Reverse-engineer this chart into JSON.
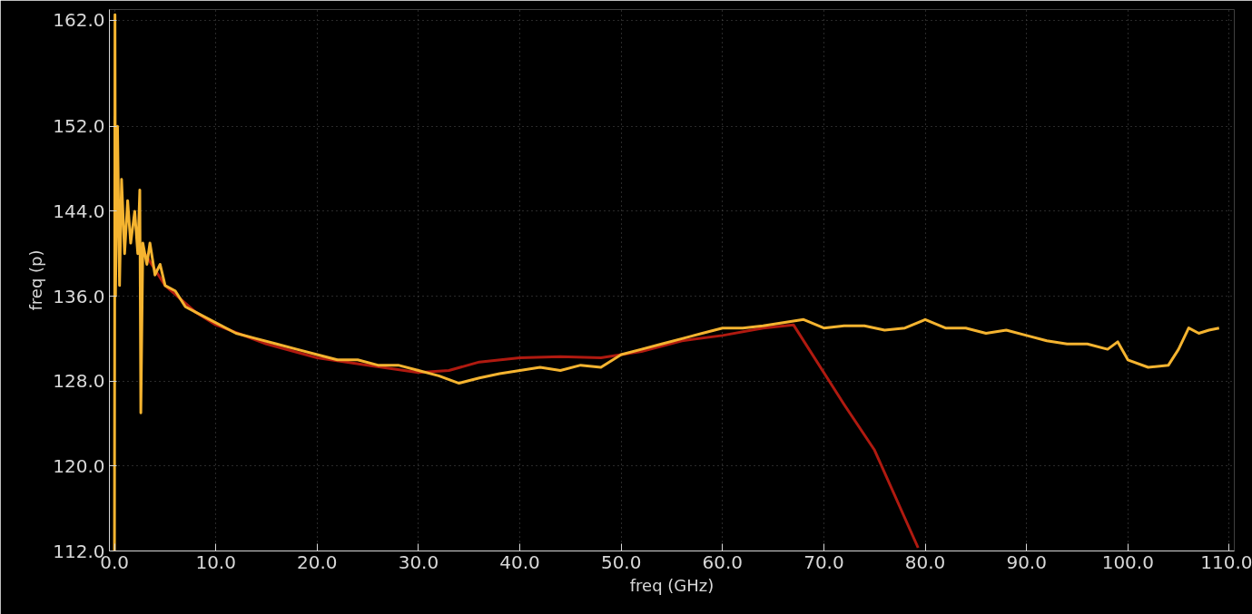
{
  "chart_data": {
    "type": "line",
    "xlabel": "freq (GHz)",
    "ylabel": "freq (p)",
    "xlim": [
      -0.5,
      110.5
    ],
    "ylim": [
      112,
      163
    ],
    "xticks": [
      {
        "value": 0,
        "label": "0.0"
      },
      {
        "value": 10,
        "label": "10.0"
      },
      {
        "value": 20,
        "label": "20.0"
      },
      {
        "value": 30,
        "label": "30.0"
      },
      {
        "value": 40,
        "label": "40.0"
      },
      {
        "value": 50,
        "label": "50.0"
      },
      {
        "value": 60,
        "label": "60.0"
      },
      {
        "value": 70,
        "label": "70.0"
      },
      {
        "value": 80,
        "label": "80.0"
      },
      {
        "value": 90,
        "label": "90.0"
      },
      {
        "value": 100,
        "label": "100.0"
      },
      {
        "value": 110,
        "label": "110.0"
      }
    ],
    "yticks": [
      {
        "value": 112,
        "label": "112.0"
      },
      {
        "value": 120,
        "label": "120.0"
      },
      {
        "value": 128,
        "label": "128.0"
      },
      {
        "value": 136,
        "label": "136.0"
      },
      {
        "value": 144,
        "label": "144.0"
      },
      {
        "value": 152,
        "label": "152.0"
      },
      {
        "value": 162,
        "label": "162.0"
      }
    ],
    "grid": true,
    "marker": "none",
    "line_style": "solid",
    "series": [
      {
        "color": "#b01a10",
        "x": [
          3,
          5,
          8,
          10,
          15,
          20,
          25,
          30,
          33,
          36,
          40,
          44,
          48,
          52,
          56,
          60,
          64,
          67,
          72,
          75,
          79.3
        ],
        "values": [
          140,
          137,
          134.5,
          133.3,
          131.5,
          130.2,
          129.5,
          128.8,
          129,
          129.8,
          130.2,
          130.3,
          130.2,
          130.8,
          131.8,
          132.3,
          133,
          133.3,
          125.8,
          121.5,
          112.3
        ]
      },
      {
        "color": "#f5b430",
        "x": [
          0,
          0.05,
          0.1,
          0.3,
          0.5,
          0.7,
          1,
          1.3,
          1.6,
          2,
          2.3,
          2.5,
          2.6,
          2.8,
          3.2,
          3.5,
          4,
          4.5,
          5,
          6,
          7,
          8,
          10,
          12,
          14,
          16,
          18,
          20,
          22,
          24,
          26,
          28,
          30,
          32,
          34,
          36,
          38,
          40,
          42,
          44,
          46,
          48,
          50,
          52,
          54,
          56,
          58,
          60,
          62,
          64,
          66,
          68,
          70,
          72,
          74,
          76,
          78,
          80,
          82,
          84,
          86,
          88,
          90,
          92,
          94,
          96,
          98,
          99,
          100,
          102,
          104,
          105,
          106,
          107,
          108,
          109
        ],
        "values": [
          112,
          162.5,
          136,
          152,
          137,
          147,
          140,
          145,
          141,
          144,
          140,
          146,
          125,
          141,
          139,
          141,
          138,
          139,
          137,
          136.5,
          135,
          134.5,
          133.5,
          132.5,
          132,
          131.5,
          131,
          130.5,
          130,
          130,
          129.5,
          129.5,
          129,
          128.5,
          127.8,
          128.3,
          128.7,
          129,
          129.3,
          129,
          129.5,
          129.3,
          130.5,
          131,
          131.5,
          132,
          132.5,
          133,
          133,
          133.2,
          133.5,
          133.8,
          133,
          133.2,
          133.2,
          132.8,
          133,
          133.8,
          133,
          133,
          132.5,
          132.8,
          132.3,
          131.8,
          131.5,
          131.5,
          131,
          131.7,
          130,
          129.3,
          129.5,
          131,
          133,
          132.5,
          132.8,
          133
        ]
      }
    ]
  }
}
